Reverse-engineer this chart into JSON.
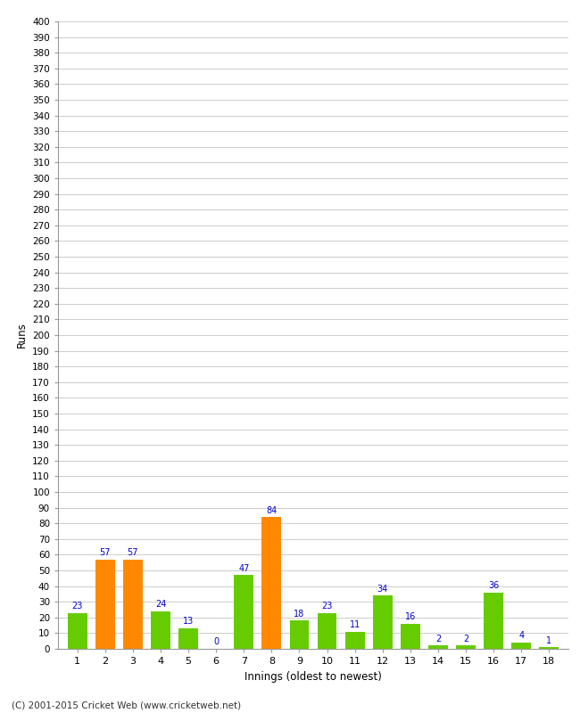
{
  "xlabel": "Innings (oldest to newest)",
  "ylabel": "Runs",
  "values": [
    23,
    57,
    57,
    24,
    13,
    0,
    47,
    84,
    18,
    23,
    11,
    34,
    16,
    2,
    2,
    36,
    4,
    1
  ],
  "categories": [
    1,
    2,
    3,
    4,
    5,
    6,
    7,
    8,
    9,
    10,
    11,
    12,
    13,
    14,
    15,
    16,
    17,
    18
  ],
  "bar_colors": [
    "#66cc00",
    "#ff8800",
    "#ff8800",
    "#66cc00",
    "#66cc00",
    "#66cc00",
    "#66cc00",
    "#ff8800",
    "#66cc00",
    "#66cc00",
    "#66cc00",
    "#66cc00",
    "#66cc00",
    "#66cc00",
    "#66cc00",
    "#66cc00",
    "#66cc00",
    "#66cc00"
  ],
  "label_color": "#0000cc",
  "ylim": [
    0,
    400
  ],
  "ytick_step": 10,
  "background_color": "#ffffff",
  "grid_color": "#cccccc",
  "footer": "(C) 2001-2015 Cricket Web (www.cricketweb.net)"
}
